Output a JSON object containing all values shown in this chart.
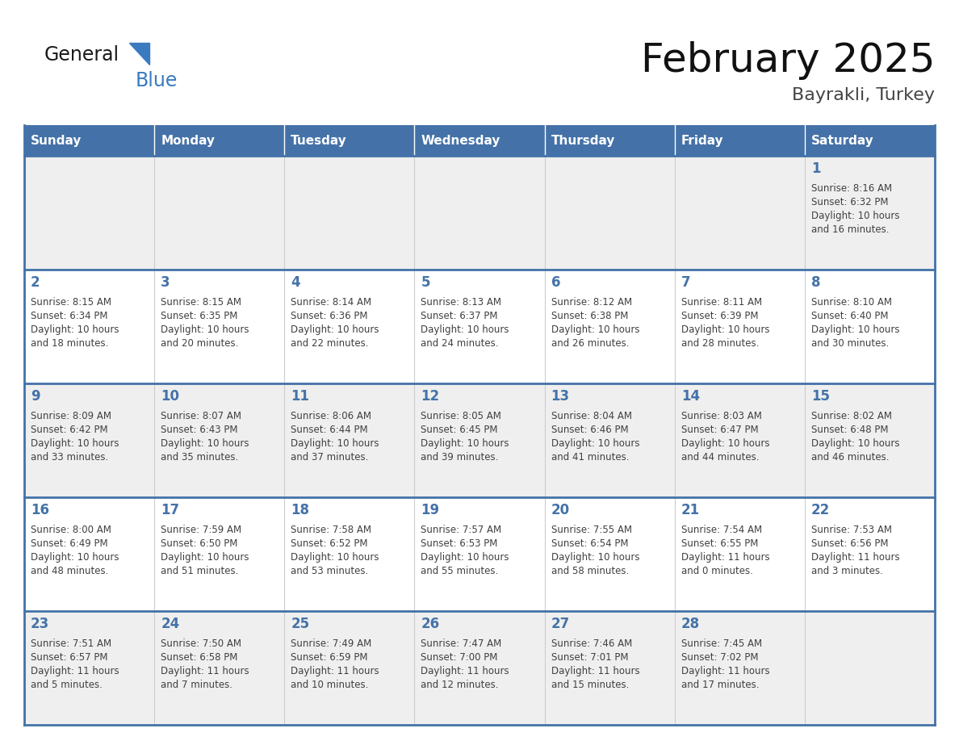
{
  "title": "February 2025",
  "subtitle": "Bayrakli, Turkey",
  "header_bg": "#4472a8",
  "header_text_color": "#ffffff",
  "cell_bg_odd": "#efefef",
  "cell_bg_even": "#ffffff",
  "day_number_color": "#4472a8",
  "info_text_color": "#404040",
  "separator_color": "#4472a8",
  "grid_color": "#cccccc",
  "days_of_week": [
    "Sunday",
    "Monday",
    "Tuesday",
    "Wednesday",
    "Thursday",
    "Friday",
    "Saturday"
  ],
  "calendar": [
    [
      {
        "day": null,
        "info": ""
      },
      {
        "day": null,
        "info": ""
      },
      {
        "day": null,
        "info": ""
      },
      {
        "day": null,
        "info": ""
      },
      {
        "day": null,
        "info": ""
      },
      {
        "day": null,
        "info": ""
      },
      {
        "day": 1,
        "info": "Sunrise: 8:16 AM\nSunset: 6:32 PM\nDaylight: 10 hours\nand 16 minutes."
      }
    ],
    [
      {
        "day": 2,
        "info": "Sunrise: 8:15 AM\nSunset: 6:34 PM\nDaylight: 10 hours\nand 18 minutes."
      },
      {
        "day": 3,
        "info": "Sunrise: 8:15 AM\nSunset: 6:35 PM\nDaylight: 10 hours\nand 20 minutes."
      },
      {
        "day": 4,
        "info": "Sunrise: 8:14 AM\nSunset: 6:36 PM\nDaylight: 10 hours\nand 22 minutes."
      },
      {
        "day": 5,
        "info": "Sunrise: 8:13 AM\nSunset: 6:37 PM\nDaylight: 10 hours\nand 24 minutes."
      },
      {
        "day": 6,
        "info": "Sunrise: 8:12 AM\nSunset: 6:38 PM\nDaylight: 10 hours\nand 26 minutes."
      },
      {
        "day": 7,
        "info": "Sunrise: 8:11 AM\nSunset: 6:39 PM\nDaylight: 10 hours\nand 28 minutes."
      },
      {
        "day": 8,
        "info": "Sunrise: 8:10 AM\nSunset: 6:40 PM\nDaylight: 10 hours\nand 30 minutes."
      }
    ],
    [
      {
        "day": 9,
        "info": "Sunrise: 8:09 AM\nSunset: 6:42 PM\nDaylight: 10 hours\nand 33 minutes."
      },
      {
        "day": 10,
        "info": "Sunrise: 8:07 AM\nSunset: 6:43 PM\nDaylight: 10 hours\nand 35 minutes."
      },
      {
        "day": 11,
        "info": "Sunrise: 8:06 AM\nSunset: 6:44 PM\nDaylight: 10 hours\nand 37 minutes."
      },
      {
        "day": 12,
        "info": "Sunrise: 8:05 AM\nSunset: 6:45 PM\nDaylight: 10 hours\nand 39 minutes."
      },
      {
        "day": 13,
        "info": "Sunrise: 8:04 AM\nSunset: 6:46 PM\nDaylight: 10 hours\nand 41 minutes."
      },
      {
        "day": 14,
        "info": "Sunrise: 8:03 AM\nSunset: 6:47 PM\nDaylight: 10 hours\nand 44 minutes."
      },
      {
        "day": 15,
        "info": "Sunrise: 8:02 AM\nSunset: 6:48 PM\nDaylight: 10 hours\nand 46 minutes."
      }
    ],
    [
      {
        "day": 16,
        "info": "Sunrise: 8:00 AM\nSunset: 6:49 PM\nDaylight: 10 hours\nand 48 minutes."
      },
      {
        "day": 17,
        "info": "Sunrise: 7:59 AM\nSunset: 6:50 PM\nDaylight: 10 hours\nand 51 minutes."
      },
      {
        "day": 18,
        "info": "Sunrise: 7:58 AM\nSunset: 6:52 PM\nDaylight: 10 hours\nand 53 minutes."
      },
      {
        "day": 19,
        "info": "Sunrise: 7:57 AM\nSunset: 6:53 PM\nDaylight: 10 hours\nand 55 minutes."
      },
      {
        "day": 20,
        "info": "Sunrise: 7:55 AM\nSunset: 6:54 PM\nDaylight: 10 hours\nand 58 minutes."
      },
      {
        "day": 21,
        "info": "Sunrise: 7:54 AM\nSunset: 6:55 PM\nDaylight: 11 hours\nand 0 minutes."
      },
      {
        "day": 22,
        "info": "Sunrise: 7:53 AM\nSunset: 6:56 PM\nDaylight: 11 hours\nand 3 minutes."
      }
    ],
    [
      {
        "day": 23,
        "info": "Sunrise: 7:51 AM\nSunset: 6:57 PM\nDaylight: 11 hours\nand 5 minutes."
      },
      {
        "day": 24,
        "info": "Sunrise: 7:50 AM\nSunset: 6:58 PM\nDaylight: 11 hours\nand 7 minutes."
      },
      {
        "day": 25,
        "info": "Sunrise: 7:49 AM\nSunset: 6:59 PM\nDaylight: 11 hours\nand 10 minutes."
      },
      {
        "day": 26,
        "info": "Sunrise: 7:47 AM\nSunset: 7:00 PM\nDaylight: 11 hours\nand 12 minutes."
      },
      {
        "day": 27,
        "info": "Sunrise: 7:46 AM\nSunset: 7:01 PM\nDaylight: 11 hours\nand 15 minutes."
      },
      {
        "day": 28,
        "info": "Sunrise: 7:45 AM\nSunset: 7:02 PM\nDaylight: 11 hours\nand 17 minutes."
      },
      {
        "day": null,
        "info": ""
      }
    ]
  ],
  "logo_general_color": "#1a1a1a",
  "logo_blue_color": "#3a7bbf",
  "logo_triangle_color": "#3a7bbf"
}
